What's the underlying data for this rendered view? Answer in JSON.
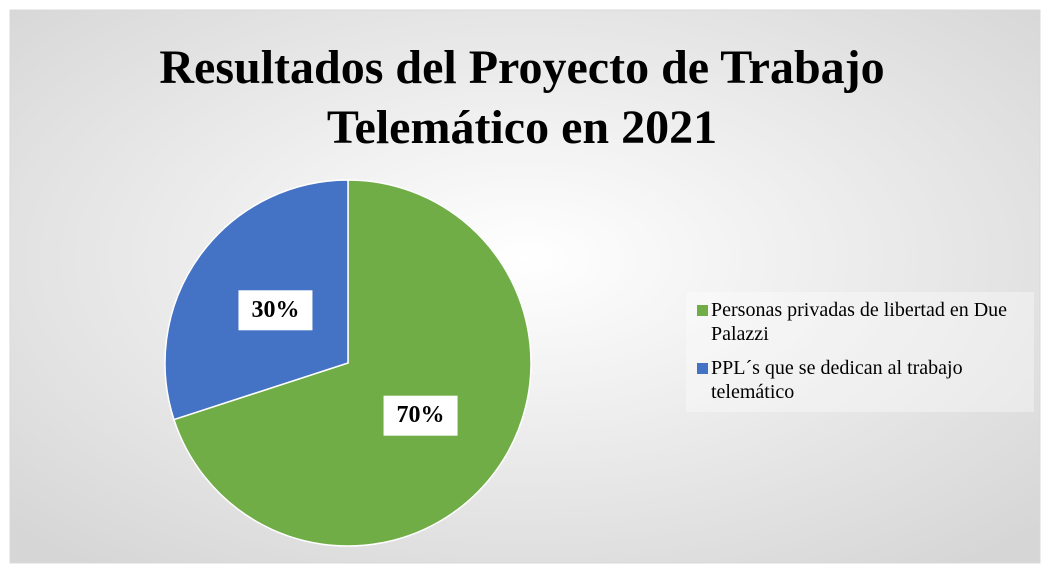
{
  "chart_data": {
    "type": "pie",
    "title": "Resultados del Proyecto de Trabajo Telemático en 2021",
    "categories": [
      "Personas privadas de libertad en Due Palazzi",
      "PPL´s que se dedican al trabajo telemático"
    ],
    "values": [
      70,
      30
    ],
    "value_labels": [
      "70%",
      "30%"
    ],
    "colors": [
      "#70ad47",
      "#4472c4"
    ],
    "legend": "right"
  }
}
